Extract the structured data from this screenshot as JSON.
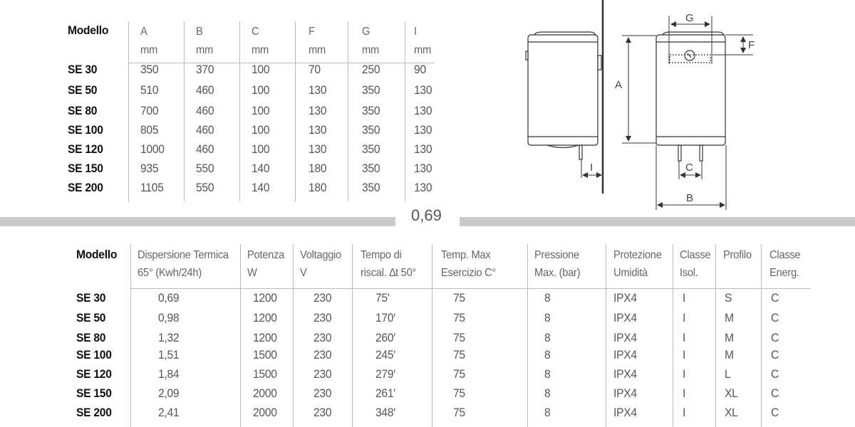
{
  "top_table": {
    "headers": [
      {
        "name": "Modello",
        "unit": ""
      },
      {
        "name": "A",
        "unit": "mm"
      },
      {
        "name": "B",
        "unit": "mm"
      },
      {
        "name": "C",
        "unit": "mm"
      },
      {
        "name": "F",
        "unit": "mm"
      },
      {
        "name": "G",
        "unit": "mm"
      },
      {
        "name": "I",
        "unit": "mm"
      }
    ],
    "rows": [
      [
        "SE 30",
        "350",
        "370",
        "100",
        "70",
        "250",
        "90"
      ],
      [
        "SE 50",
        "510",
        "460",
        "100",
        "130",
        "350",
        "130"
      ],
      [
        "SE 80",
        "700",
        "460",
        "100",
        "130",
        "350",
        "130"
      ],
      [
        "SE 100",
        "805",
        "460",
        "100",
        "130",
        "350",
        "130"
      ],
      [
        "SE 120",
        "1000",
        "460",
        "100",
        "130",
        "350",
        "130"
      ],
      [
        "SE 150",
        "935",
        "550",
        "140",
        "180",
        "350",
        "130"
      ],
      [
        "SE 200",
        "1105",
        "550",
        "140",
        "180",
        "350",
        "130"
      ]
    ]
  },
  "divider_label": "0,69",
  "diagram": {
    "labels": {
      "A": "A",
      "B": "B",
      "C": "C",
      "F": "F",
      "G": "G",
      "I": "I"
    }
  },
  "bottom_table": {
    "headers": [
      [
        "Modello",
        ""
      ],
      [
        "Dispersione Termica",
        "65° (Kwh/24h)"
      ],
      [
        "Potenza",
        "W"
      ],
      [
        "Voltaggio",
        "V"
      ],
      [
        "Tempo di",
        "riscal. ∆t 50°"
      ],
      [
        "Temp. Max",
        "Esercizio C°"
      ],
      [
        "Pressione",
        "Max. (bar)"
      ],
      [
        "Protezione",
        "Umidità"
      ],
      [
        "Classe",
        "Isol."
      ],
      [
        "Profilo",
        ""
      ],
      [
        "Classe",
        "Energ."
      ]
    ],
    "rows": [
      [
        "SE 30",
        "0,69",
        "1200",
        "230",
        "75′",
        "75",
        "8",
        "IPX4",
        "I",
        "S",
        "C"
      ],
      [
        "SE 50",
        "0,98",
        "1200",
        "230",
        "170′",
        "75",
        "8",
        "IPX4",
        "I",
        "M",
        "C"
      ],
      [
        "SE 80",
        "1,32",
        "1200",
        "230",
        "260′",
        "75",
        "8",
        "IPX4",
        "I",
        "M",
        "C"
      ],
      [
        "SE 100",
        "1,51",
        "1500",
        "230",
        "245′",
        "75",
        "8",
        "IPX4",
        "I",
        "M",
        "C"
      ],
      [
        "SE 120",
        "1,84",
        "1500",
        "230",
        "279′",
        "75",
        "8",
        "IPX4",
        "I",
        "L",
        "C"
      ],
      [
        "SE 150",
        "2,09",
        "2000",
        "230",
        "261′",
        "75",
        "8",
        "IPX4",
        "I",
        "XL",
        "C"
      ],
      [
        "SE 200",
        "2,41",
        "2000",
        "230",
        "348′",
        "75",
        "8",
        "IPX4",
        "I",
        "XL",
        "C"
      ]
    ]
  }
}
